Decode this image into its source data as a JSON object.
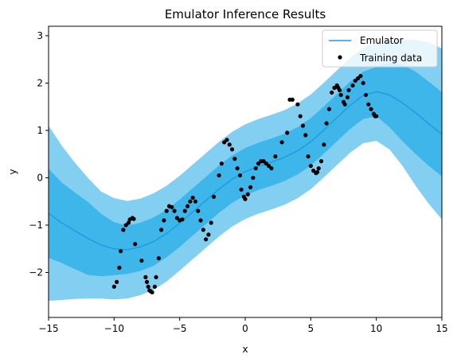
{
  "chart_data": {
    "type": "line",
    "title": "Emulator Inference Results",
    "xlabel": "x",
    "ylabel": "y",
    "xlim": [
      -15,
      15
    ],
    "ylim": [
      -2.95,
      3.2
    ],
    "xticks": [
      -15,
      -10,
      -5,
      0,
      5,
      10,
      15
    ],
    "xtick_labels": [
      "−15",
      "−10",
      "−5",
      "0",
      "5",
      "10",
      "15"
    ],
    "yticks": [
      -2,
      -1,
      0,
      1,
      2,
      3
    ],
    "ytick_labels": [
      "−2",
      "−1",
      "0",
      "1",
      "2",
      "3"
    ],
    "grid": false,
    "legend": {
      "position": "top-right",
      "entries": [
        {
          "label": "Emulator",
          "marker": "line"
        },
        {
          "label": "Training data",
          "marker": "dot"
        }
      ]
    },
    "colors": {
      "mean_line": "#1a9ee0",
      "inner_band": "#3fb6ea",
      "outer_band": "#82cff1",
      "points": "#000000"
    },
    "emulator": {
      "x": [
        -15,
        -14,
        -13,
        -12,
        -11,
        -10,
        -9,
        -8,
        -7,
        -6,
        -5,
        -4,
        -3,
        -2,
        -1,
        0,
        1,
        2,
        3,
        4,
        5,
        6,
        7,
        8,
        9,
        10,
        11,
        12,
        13,
        14,
        15
      ],
      "mean": [
        -0.75,
        -0.95,
        -1.12,
        -1.28,
        -1.42,
        -1.5,
        -1.52,
        -1.46,
        -1.35,
        -1.18,
        -0.96,
        -0.72,
        -0.48,
        -0.24,
        -0.03,
        0.13,
        0.24,
        0.33,
        0.43,
        0.57,
        0.76,
        1.01,
        1.27,
        1.53,
        1.74,
        1.82,
        1.75,
        1.58,
        1.37,
        1.14,
        0.92
      ],
      "inner_lower": [
        -1.69,
        -1.8,
        -1.93,
        -2.05,
        -2.08,
        -2.06,
        -2.03,
        -1.97,
        -1.86,
        -1.68,
        -1.46,
        -1.22,
        -0.98,
        -0.74,
        -0.53,
        -0.37,
        -0.26,
        -0.17,
        -0.07,
        0.07,
        0.26,
        0.51,
        0.77,
        1.03,
        1.24,
        1.3,
        1.07,
        0.77,
        0.5,
        0.25,
        0.03
      ],
      "inner_upper": [
        0.19,
        -0.1,
        -0.31,
        -0.51,
        -0.76,
        -0.94,
        -1.01,
        -0.95,
        -0.84,
        -0.68,
        -0.46,
        -0.22,
        0.02,
        0.26,
        0.47,
        0.63,
        0.74,
        0.83,
        0.93,
        1.07,
        1.26,
        1.51,
        1.77,
        2.03,
        2.24,
        2.34,
        2.43,
        2.39,
        2.24,
        2.03,
        1.81
      ],
      "outer_lower": [
        -2.6,
        -2.58,
        -2.56,
        -2.55,
        -2.55,
        -2.57,
        -2.55,
        -2.48,
        -2.37,
        -2.19,
        -1.96,
        -1.72,
        -1.48,
        -1.24,
        -1.03,
        -0.87,
        -0.76,
        -0.67,
        -0.57,
        -0.43,
        -0.24,
        0.01,
        0.27,
        0.53,
        0.73,
        0.78,
        0.6,
        0.25,
        -0.17,
        -0.55,
        -0.88
      ],
      "outer_upper": [
        1.1,
        0.68,
        0.32,
        0.0,
        -0.29,
        -0.43,
        -0.49,
        -0.44,
        -0.33,
        -0.17,
        0.04,
        0.28,
        0.52,
        0.76,
        0.97,
        1.13,
        1.24,
        1.33,
        1.43,
        1.57,
        1.76,
        2.01,
        2.27,
        2.53,
        2.74,
        2.86,
        2.9,
        2.92,
        2.91,
        2.86,
        2.73
      ]
    },
    "training_data": {
      "x": [
        -10.0,
        -9.8,
        -9.6,
        -9.5,
        -9.3,
        -9.1,
        -8.9,
        -8.8,
        -8.6,
        -8.5,
        -8.4,
        -7.9,
        -7.6,
        -7.5,
        -7.4,
        -7.3,
        -7.2,
        -7.1,
        -6.9,
        -6.8,
        -6.6,
        -6.4,
        -6.2,
        -6.0,
        -5.8,
        -5.6,
        -5.4,
        -5.2,
        -5.0,
        -4.8,
        -4.6,
        -4.4,
        -4.2,
        -4.0,
        -3.8,
        -3.6,
        -3.4,
        -3.2,
        -3.0,
        -2.8,
        -2.6,
        -2.4,
        -2.0,
        -1.8,
        -1.6,
        -1.4,
        -1.2,
        -1.0,
        -0.8,
        -0.6,
        -0.4,
        -0.3,
        -0.1,
        0.0,
        0.2,
        0.4,
        0.6,
        0.8,
        1.0,
        1.2,
        1.4,
        1.6,
        1.8,
        2.0,
        2.3,
        2.8,
        3.2,
        3.4,
        3.6,
        4.0,
        4.2,
        4.4,
        4.6,
        4.8,
        5.0,
        5.2,
        5.4,
        5.5,
        5.6,
        5.8,
        6.0,
        6.2,
        6.4,
        6.6,
        6.8,
        7.0,
        7.1,
        7.2,
        7.3,
        7.5,
        7.6,
        7.8,
        7.9,
        8.2,
        8.4,
        8.6,
        8.8,
        9.0,
        9.2,
        9.4,
        9.6,
        9.8,
        9.9,
        10.0
      ],
      "y": [
        -2.3,
        -2.2,
        -1.9,
        -1.55,
        -1.1,
        -1.0,
        -0.95,
        -0.88,
        -0.85,
        -0.87,
        -1.4,
        -1.75,
        -2.1,
        -2.2,
        -2.3,
        -2.38,
        -2.4,
        -2.42,
        -2.3,
        -2.1,
        -1.7,
        -1.1,
        -0.9,
        -0.7,
        -0.6,
        -0.62,
        -0.7,
        -0.85,
        -0.9,
        -0.88,
        -0.7,
        -0.6,
        -0.5,
        -0.42,
        -0.5,
        -0.7,
        -0.9,
        -1.1,
        -1.3,
        -1.2,
        -0.95,
        -0.4,
        0.05,
        0.3,
        0.75,
        0.8,
        0.7,
        0.6,
        0.4,
        0.2,
        0.05,
        -0.25,
        -0.4,
        -0.45,
        -0.35,
        -0.2,
        0.0,
        0.2,
        0.3,
        0.35,
        0.35,
        0.3,
        0.25,
        0.2,
        0.45,
        0.75,
        0.95,
        1.65,
        1.65,
        1.55,
        1.3,
        1.1,
        0.9,
        0.45,
        0.25,
        0.15,
        0.1,
        0.12,
        0.2,
        0.35,
        0.7,
        1.15,
        1.45,
        1.8,
        1.9,
        1.95,
        1.9,
        1.85,
        1.75,
        1.6,
        1.55,
        1.7,
        1.85,
        1.95,
        2.05,
        2.1,
        2.15,
        2.0,
        1.75,
        1.55,
        1.45,
        1.35,
        1.3,
        1.3
      ]
    }
  }
}
